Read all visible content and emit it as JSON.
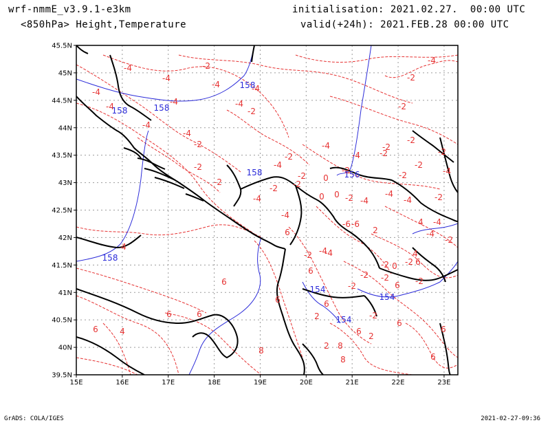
{
  "header": {
    "model": "wrf-nmmE_v3.9.1-e3km",
    "field": "<850hPa> Height,Temperature",
    "init": "initialisation: 2021.02.27.  00:00 UTC",
    "valid": "valid(+24h): 2021.FEB.28 00:00 UTC"
  },
  "footer": {
    "left": "GrADS: COLA/IGES",
    "right": "2021-02-27-09:36"
  },
  "map": {
    "lon_labels": [
      "15E",
      "16E",
      "17E",
      "18E",
      "19E",
      "20E",
      "21E",
      "22E",
      "23E"
    ],
    "lat_labels": [
      "39.5N",
      "40N",
      "40.5N",
      "41N",
      "41.5N",
      "42N",
      "42.5N",
      "43N",
      "43.5N",
      "44N",
      "44.5N",
      "45N",
      "45.5N"
    ],
    "height_contour_color": "#2b2bd9",
    "temperature_contour_color": "#e63232",
    "coastline_color": "#000000",
    "height_labels": [
      "158",
      "158",
      "158",
      "158",
      "156",
      "158",
      "154",
      "154",
      "154"
    ],
    "temperature_labels": [
      "-4",
      "-2",
      "-4",
      "-4",
      "-2",
      "-4",
      "-2",
      "-2",
      "-2",
      "-2",
      "-2",
      "-4",
      "-2",
      "0",
      "-2",
      "-2",
      "-2",
      "2",
      "-2",
      "-2",
      "-4",
      "4",
      "2",
      "0",
      "6",
      "-6",
      "-4",
      "-4",
      "-4",
      "-2",
      "-2",
      "-6",
      "-4",
      "-4",
      "-4",
      "-2",
      "-4",
      "-4",
      "-4",
      "-4",
      "-4",
      "-4",
      "-2",
      "-4",
      "-2",
      "-2",
      "0",
      "-2",
      "-4",
      "-4",
      "-4",
      "-4",
      "-2",
      "-2",
      "4",
      "6",
      "6",
      "6",
      "6",
      "6",
      "6",
      "6",
      "6",
      "6",
      "6",
      "6",
      "8",
      "8",
      "8",
      "6",
      "4",
      "2",
      "2",
      "4",
      "6",
      "-2",
      "-2",
      "-2",
      "-2",
      "0",
      "-2",
      "-4",
      "-2",
      "-2"
    ],
    "gridlines": true
  }
}
